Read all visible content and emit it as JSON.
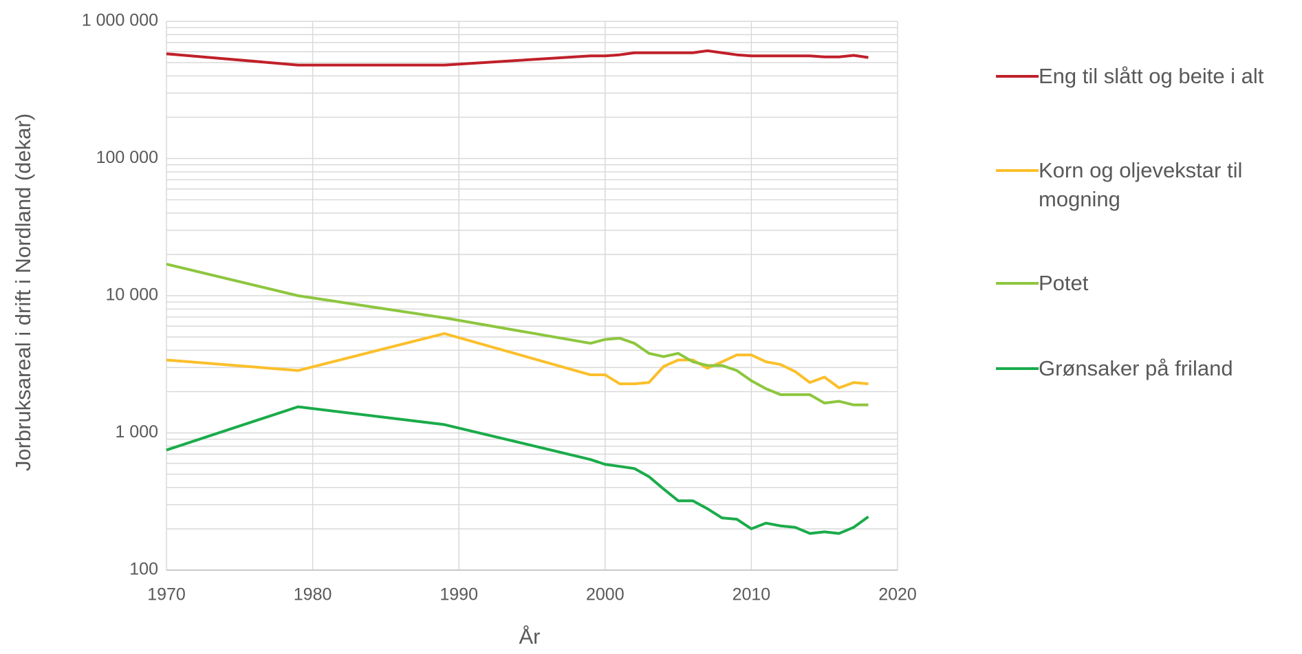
{
  "chart_data": {
    "type": "line",
    "x": [
      1970,
      1979,
      1989,
      1999,
      2000,
      2001,
      2002,
      2003,
      2004,
      2005,
      2006,
      2007,
      2008,
      2009,
      2010,
      2011,
      2012,
      2013,
      2014,
      2015,
      2016,
      2017,
      2018
    ],
    "series": [
      {
        "name": "Eng til slått og beite i alt",
        "color": "#c0202a",
        "values": [
          580000,
          480000,
          480000,
          560000,
          560000,
          570000,
          590000,
          590000,
          590000,
          590000,
          590000,
          610000,
          590000,
          570000,
          560000,
          560000,
          560000,
          560000,
          560000,
          550000,
          550000,
          565000,
          545000
        ]
      },
      {
        "name": "Korn og oljevekstar til mogning",
        "color": "#fbbf2a",
        "values": [
          3400,
          2850,
          5300,
          2650,
          2650,
          2280,
          2280,
          2330,
          3050,
          3400,
          3400,
          2960,
          3300,
          3700,
          3700,
          3300,
          3150,
          2800,
          2330,
          2550,
          2130,
          2330,
          2280
        ]
      },
      {
        "name": "Potet",
        "color": "#8dc63f",
        "values": [
          17000,
          10000,
          6900,
          4500,
          4800,
          4900,
          4500,
          3800,
          3600,
          3800,
          3300,
          3100,
          3100,
          2850,
          2400,
          2100,
          1900,
          1900,
          1900,
          1650,
          1700,
          1600,
          1600
        ]
      },
      {
        "name": "Grønsaker på friland",
        "color": "#1aab4a",
        "values": [
          750,
          1550,
          1150,
          640,
          590,
          570,
          550,
          480,
          390,
          320,
          320,
          280,
          240,
          235,
          200,
          220,
          210,
          205,
          185,
          190,
          185,
          205,
          245
        ]
      }
    ],
    "xlabel": "År",
    "ylabel": "Jorbruksareal i drift i Nordland (dekar)",
    "xlim": [
      1970,
      2020
    ],
    "xticks": [
      1970,
      1980,
      1990,
      2000,
      2010,
      2020
    ],
    "ylim": [
      100,
      1000000
    ],
    "yticks": [
      100,
      {
        "value": 1000,
        "label": "1 000"
      },
      {
        "value": 10000,
        "label": "10 000"
      },
      {
        "value": 100000,
        "label": "100 000"
      },
      {
        "value": 1000000,
        "label": "1 000 000"
      }
    ],
    "log_y": true,
    "grid": true,
    "minor_grid": true,
    "legend": "right"
  }
}
